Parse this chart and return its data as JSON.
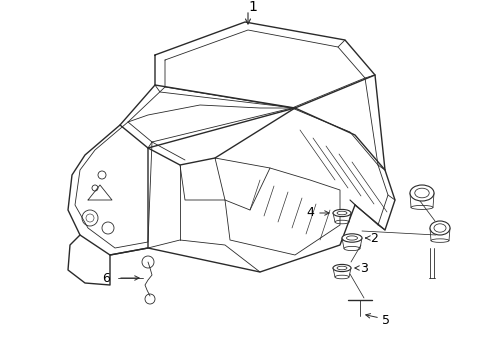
{
  "background_color": "#ffffff",
  "line_color": "#2a2a2a",
  "label_color": "#000000",
  "fig_width": 4.89,
  "fig_height": 3.6,
  "dpi": 100,
  "label_fontsize": 9,
  "lw_main": 1.0,
  "lw_thin": 0.6,
  "lw_inner": 0.5
}
